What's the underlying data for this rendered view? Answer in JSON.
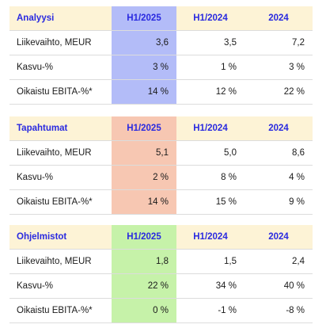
{
  "tables": [
    {
      "name": "Analyysi",
      "headers": [
        "H1/2025",
        "H1/2024",
        "2024"
      ],
      "rows": [
        {
          "label": "Liikevaihto, MEUR",
          "values": [
            "3,6",
            "3,5",
            "7,2"
          ]
        },
        {
          "label": "Kasvu-%",
          "values": [
            "3 %",
            "1 %",
            "3 %"
          ]
        },
        {
          "label": "Oikaistu EBITA-%*",
          "values": [
            "14 %",
            "12 %",
            "22 %"
          ]
        }
      ]
    },
    {
      "name": "Tapahtumat",
      "headers": [
        "H1/2025",
        "H1/2024",
        "2024"
      ],
      "rows": [
        {
          "label": "Liikevaihto, MEUR",
          "values": [
            "5,1",
            "5,0",
            "8,6"
          ]
        },
        {
          "label": "Kasvu-%",
          "values": [
            "2 %",
            "8 %",
            "4 %"
          ]
        },
        {
          "label": "Oikaistu EBITA-%*",
          "values": [
            "14 %",
            "15 %",
            "9 %"
          ]
        }
      ]
    },
    {
      "name": "Ohjelmistot",
      "headers": [
        "H1/2025",
        "H1/2024",
        "2024"
      ],
      "rows": [
        {
          "label": "Liikevaihto, MEUR",
          "values": [
            "1,8",
            "1,5",
            "2,4"
          ]
        },
        {
          "label": "Kasvu-%",
          "values": [
            "22 %",
            "34 %",
            "40 %"
          ]
        },
        {
          "label": "Oikaistu EBITA-%*",
          "values": [
            "0 %",
            "-1 %",
            "-8 %"
          ]
        }
      ]
    }
  ],
  "colors": {
    "header_bg": "#fdf3d6",
    "header_text": "#2a2ae0",
    "highlight_analyysi": "#b3bcf8",
    "highlight_tapahtumat": "#f7c7b2",
    "highlight_ohjelmistot": "#c6f2a9"
  }
}
